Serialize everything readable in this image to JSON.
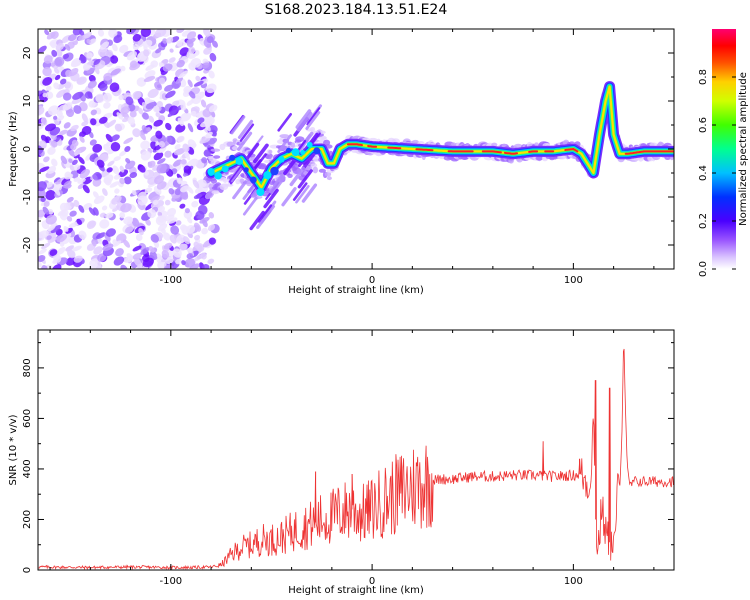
{
  "figure_title": "S168.2023.184.13.51.E24",
  "chart_data": [
    {
      "type": "heatmap",
      "title": "",
      "xlabel": "Height of straight line (km)",
      "ylabel": "Frequency (Hz)",
      "xlim": [
        -166,
        150
      ],
      "ylim": [
        -25,
        25
      ],
      "xticks": [
        -100,
        0,
        100
      ],
      "yticks": [
        -20,
        -10,
        0,
        10,
        20
      ],
      "grid": false,
      "colorbar": {
        "label": "Normalized spectral amplitude",
        "range": [
          0,
          1
        ],
        "ticks": [
          0.0,
          0.2,
          0.4,
          0.6,
          0.8
        ],
        "colors": [
          "#ffffff",
          "#ead6ff",
          "#b07cff",
          "#6a00ff",
          "#0000ff",
          "#00c8ff",
          "#00ff7f",
          "#80ff00",
          "#ffff00",
          "#ff8000",
          "#ff0000",
          "#ff0080"
        ]
      },
      "ridge": {
        "name": "frequency ridge",
        "x": [
          -80,
          -75,
          -70,
          -65,
          -60,
          -55,
          -50,
          -45,
          -40,
          -35,
          -30,
          -25,
          -22,
          -19,
          -16,
          -12,
          -8,
          0,
          20,
          40,
          60,
          70,
          80,
          90,
          100,
          104,
          107,
          110,
          113,
          116,
          118,
          120,
          123,
          127,
          135,
          150
        ],
        "y": [
          -5,
          -4,
          -3,
          -2,
          -5,
          -8,
          -4,
          -2,
          -1,
          -2,
          0,
          0,
          -3,
          -3,
          0,
          1,
          1,
          0.5,
          0,
          -0.5,
          -0.5,
          -1,
          -0.5,
          -0.5,
          0,
          -1,
          -3,
          -5,
          3,
          10,
          13,
          3,
          -1,
          -1,
          -0.5,
          -0.5
        ]
      }
    },
    {
      "type": "line",
      "title": "",
      "xlabel": "Height of straight line (km)",
      "ylabel": "SNR (10 * v/v)",
      "xlim": [
        -166,
        150
      ],
      "ylim": [
        0,
        950
      ],
      "xticks": [
        -100,
        0,
        100
      ],
      "yticks": [
        0,
        200,
        400,
        600,
        800
      ],
      "grid": false,
      "color": "#ee3333",
      "series": [
        {
          "x": [
            -166,
            -140,
            -120,
            -100,
            -90,
            -80,
            -75,
            -70,
            -65,
            -60,
            -55,
            -50,
            -45,
            -40,
            -35,
            -30,
            -25,
            -20,
            -15,
            -10,
            -5,
            0,
            5,
            10,
            15,
            20,
            25,
            30,
            35,
            40,
            50,
            60,
            70,
            80,
            90,
            100,
            104,
            107,
            108,
            109,
            110,
            111,
            112,
            113,
            114,
            115,
            116,
            117,
            118,
            119,
            120,
            121,
            122,
            123,
            124,
            125,
            126,
            127,
            128,
            130,
            140,
            150
          ],
          "y": [
            12,
            10,
            12,
            10,
            10,
            12,
            20,
            60,
            90,
            100,
            120,
            120,
            130,
            150,
            170,
            180,
            200,
            210,
            230,
            240,
            220,
            240,
            270,
            290,
            310,
            330,
            345,
            355,
            360,
            360,
            370,
            370,
            375,
            375,
            370,
            375,
            380,
            340,
            320,
            450,
            600,
            200,
            90,
            130,
            250,
            200,
            150,
            120,
            110,
            100,
            110,
            100,
            400,
            300,
            500,
            950,
            600,
            380,
            330,
            350,
            350,
            350
          ]
        }
      ],
      "spikes": [
        {
          "x": -28,
          "y": 390
        },
        {
          "x": -10,
          "y": 380
        },
        {
          "x": 85,
          "y": 510
        },
        {
          "x": 103,
          "y": 440
        },
        {
          "x": 111,
          "y": 750
        },
        {
          "x": 118,
          "y": 720
        }
      ]
    }
  ]
}
